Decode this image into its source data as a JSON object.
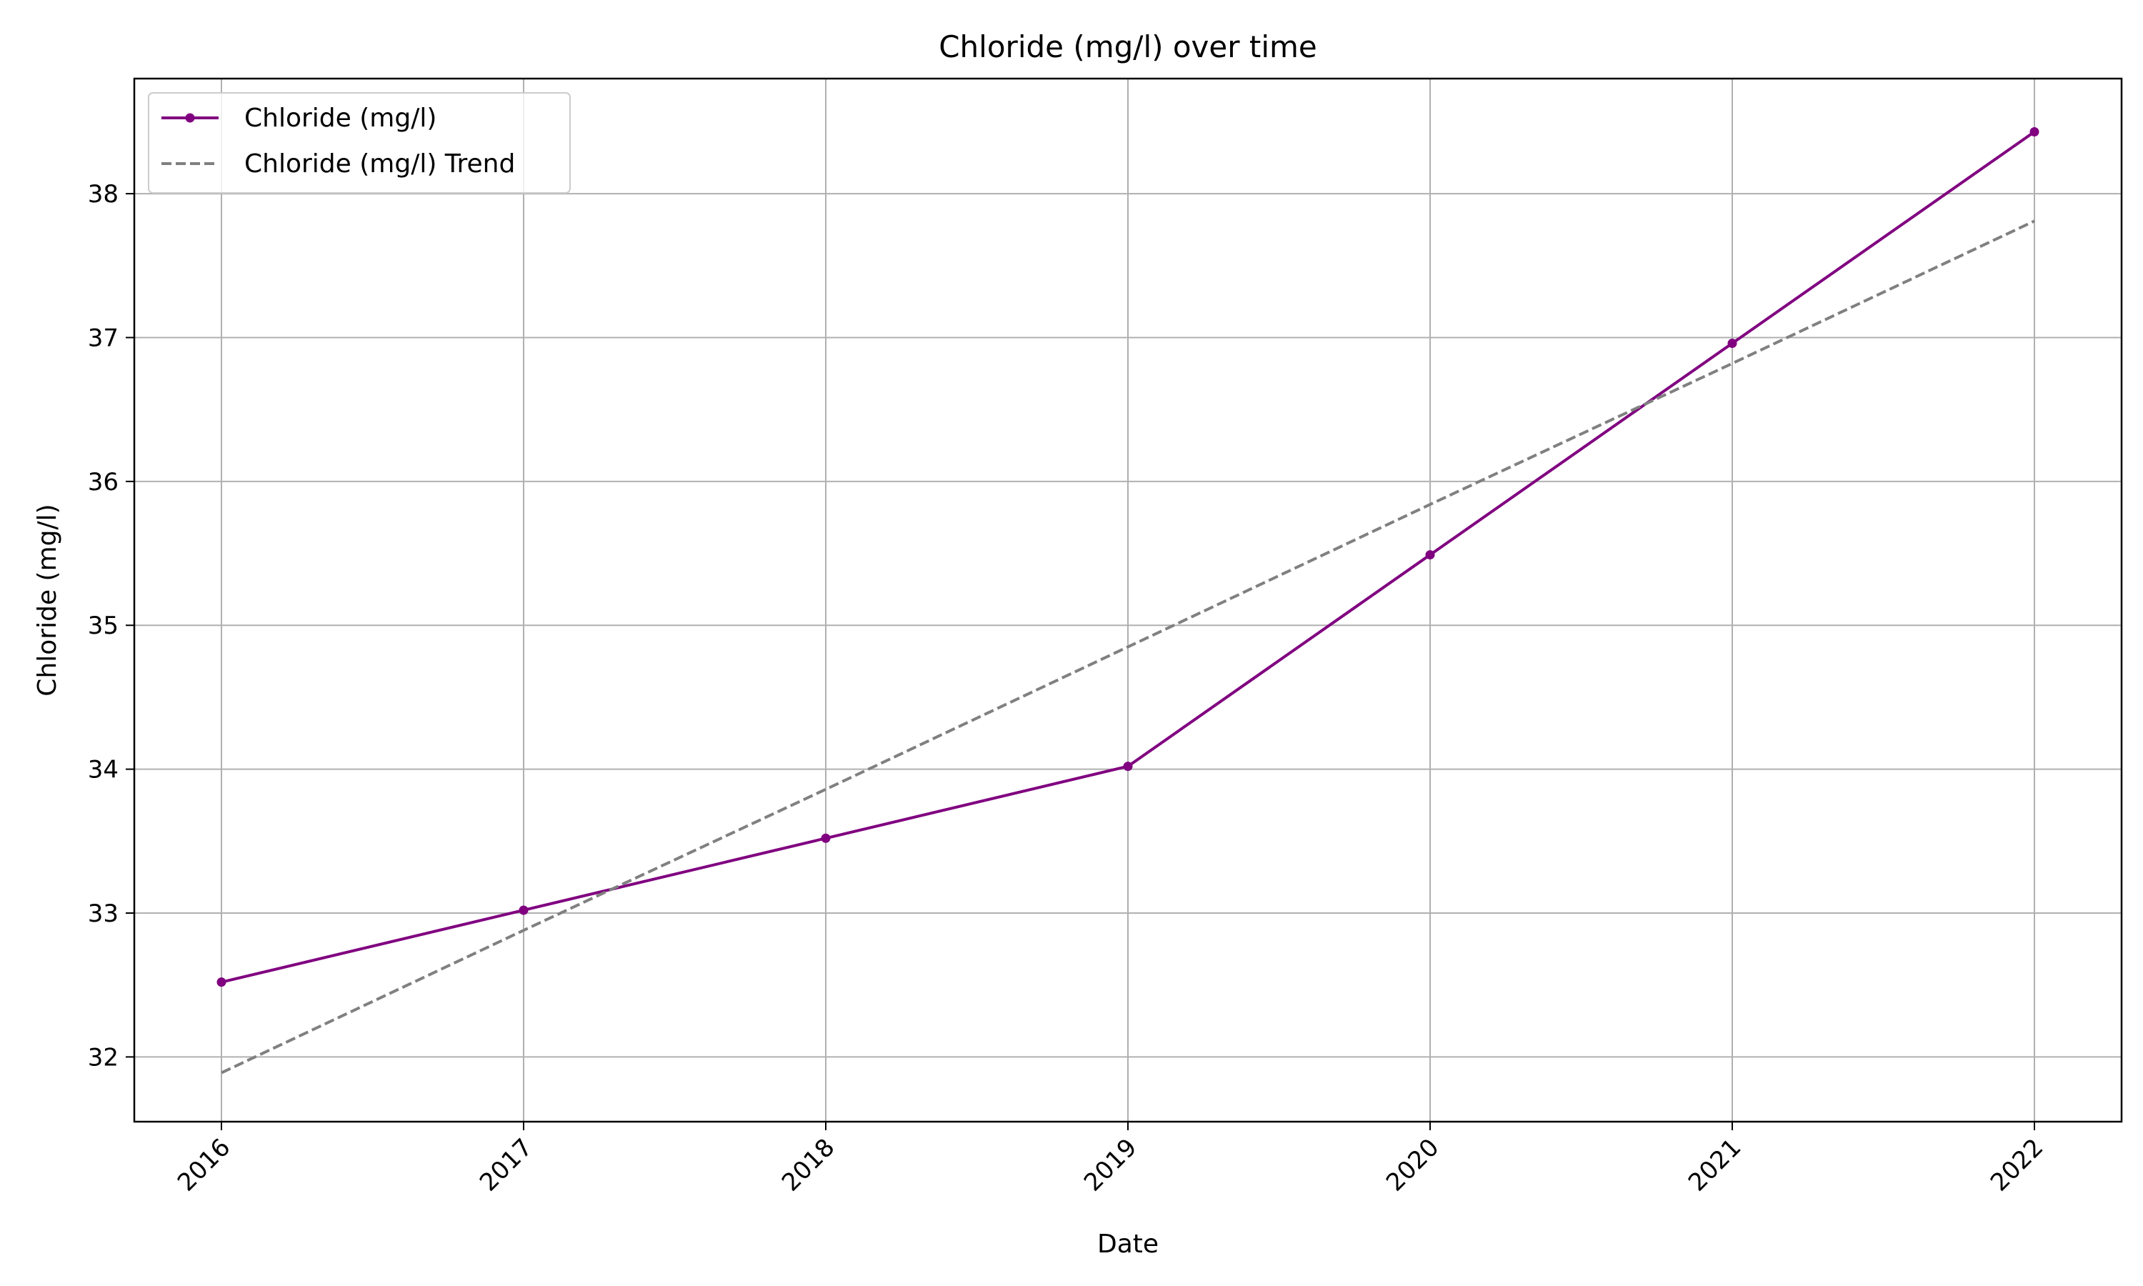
{
  "chart_data": {
    "type": "line",
    "title": "Chloride (mg/l) over time",
    "xlabel": "Date",
    "ylabel": "Chloride (mg/l)",
    "categories": [
      "2016",
      "2017",
      "2018",
      "2019",
      "2020",
      "2021",
      "2022"
    ],
    "x_ticks": [
      "2016",
      "2017",
      "2018",
      "2019",
      "2020",
      "2021",
      "2022"
    ],
    "y_ticks": [
      "32",
      "33",
      "34",
      "35",
      "36",
      "37",
      "38"
    ],
    "ylim": [
      31.55,
      38.8
    ],
    "grid": true,
    "legend_position": "top-left",
    "series": [
      {
        "name": "Chloride (mg/l)",
        "style": "solid",
        "marker": "circle",
        "color": "#800080",
        "values": [
          32.52,
          33.02,
          33.52,
          34.02,
          35.49,
          36.96,
          38.43
        ]
      },
      {
        "name": "Chloride (mg/l) Trend",
        "style": "dashed",
        "marker": "none",
        "color": "#808080",
        "values": [
          31.89,
          32.88,
          33.86,
          34.85,
          35.84,
          36.82,
          37.81
        ]
      }
    ]
  }
}
